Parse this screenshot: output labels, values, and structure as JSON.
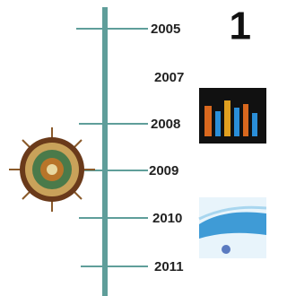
{
  "badge": "1",
  "timeline": {
    "years": [
      "2005",
      "2007",
      "2008",
      "2009",
      "2010",
      "2011"
    ]
  }
}
